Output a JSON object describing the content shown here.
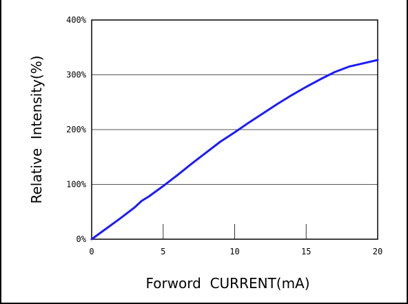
{
  "chart_data": {
    "type": "line",
    "xlabel": "Forword  CURRENT(mA)",
    "ylabel": "Relative  Intensity(%)",
    "xlim": [
      0,
      20
    ],
    "ylim": [
      0,
      400
    ],
    "x_ticks": [
      {
        "value": 0,
        "label": "0"
      },
      {
        "value": 5,
        "label": "5"
      },
      {
        "value": 10,
        "label": "10"
      },
      {
        "value": 15,
        "label": "15"
      },
      {
        "value": 20,
        "label": "20"
      }
    ],
    "y_ticks": [
      {
        "value": 0,
        "label": "0%"
      },
      {
        "value": 100,
        "label": "100%"
      },
      {
        "value": 200,
        "label": "200%"
      },
      {
        "value": 300,
        "label": "300%"
      },
      {
        "value": 400,
        "label": "400%"
      }
    ],
    "grid": "horizontal",
    "series": [
      {
        "color": "#1a1aff",
        "x": [
          0,
          1,
          2,
          3,
          3.5,
          4,
          5,
          6,
          7,
          8,
          9,
          10,
          11,
          12,
          13,
          14,
          15,
          16,
          17,
          18,
          19,
          20
        ],
        "y": [
          0,
          19,
          38,
          58,
          70,
          78,
          97,
          117,
          138,
          158,
          178,
          195,
          213,
          230,
          247,
          263,
          278,
          292,
          305,
          315,
          321,
          327
        ]
      }
    ]
  }
}
